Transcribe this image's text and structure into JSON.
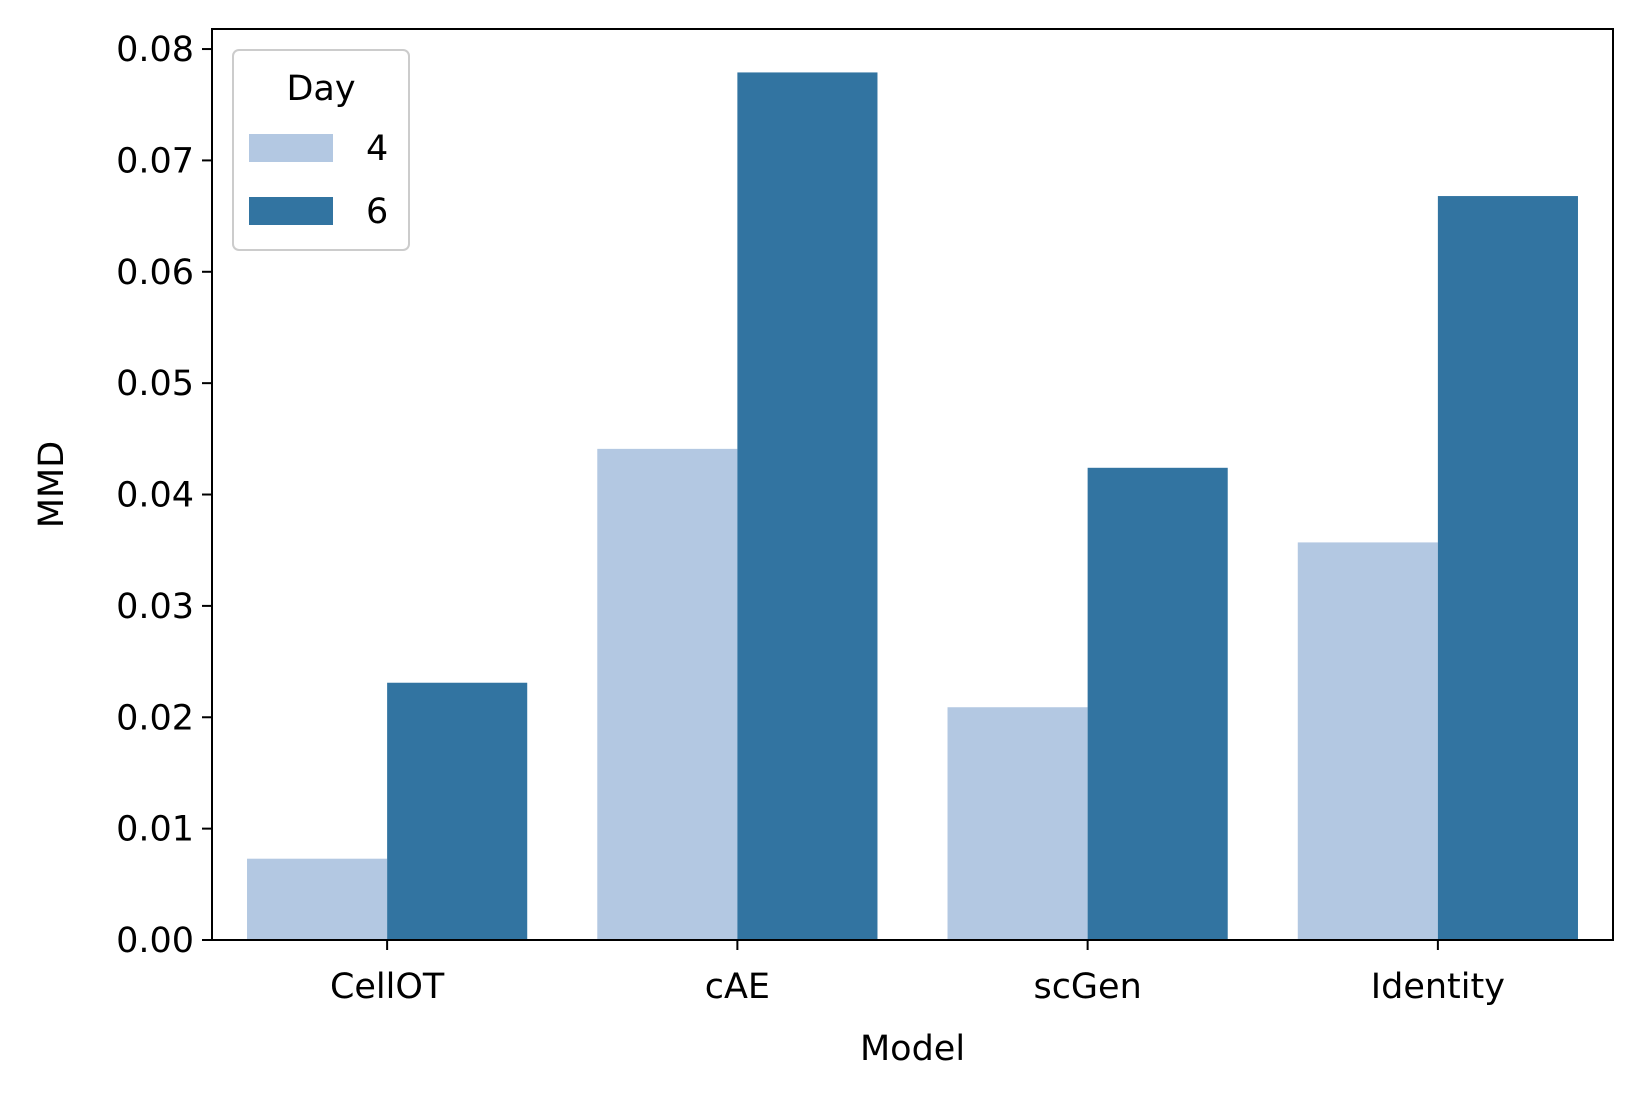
{
  "chart_data": {
    "type": "bar",
    "xlabel": "Model",
    "ylabel": "MMD",
    "categories": [
      "CellOT",
      "cAE",
      "scGen",
      "Identity"
    ],
    "series": [
      {
        "name": "4",
        "values": [
          0.0073,
          0.0441,
          0.0209,
          0.0357
        ],
        "color": "#b3c8e2"
      },
      {
        "name": "6",
        "values": [
          0.0231,
          0.0779,
          0.0424,
          0.0668
        ],
        "color": "#3274a1"
      }
    ],
    "ylim": [
      0,
      0.0818
    ],
    "yticks": [
      "0.00",
      "0.01",
      "0.02",
      "0.03",
      "0.04",
      "0.05",
      "0.06",
      "0.07",
      "0.08"
    ],
    "grid": false,
    "legend": {
      "title": "Day",
      "placement": "top-left"
    }
  }
}
